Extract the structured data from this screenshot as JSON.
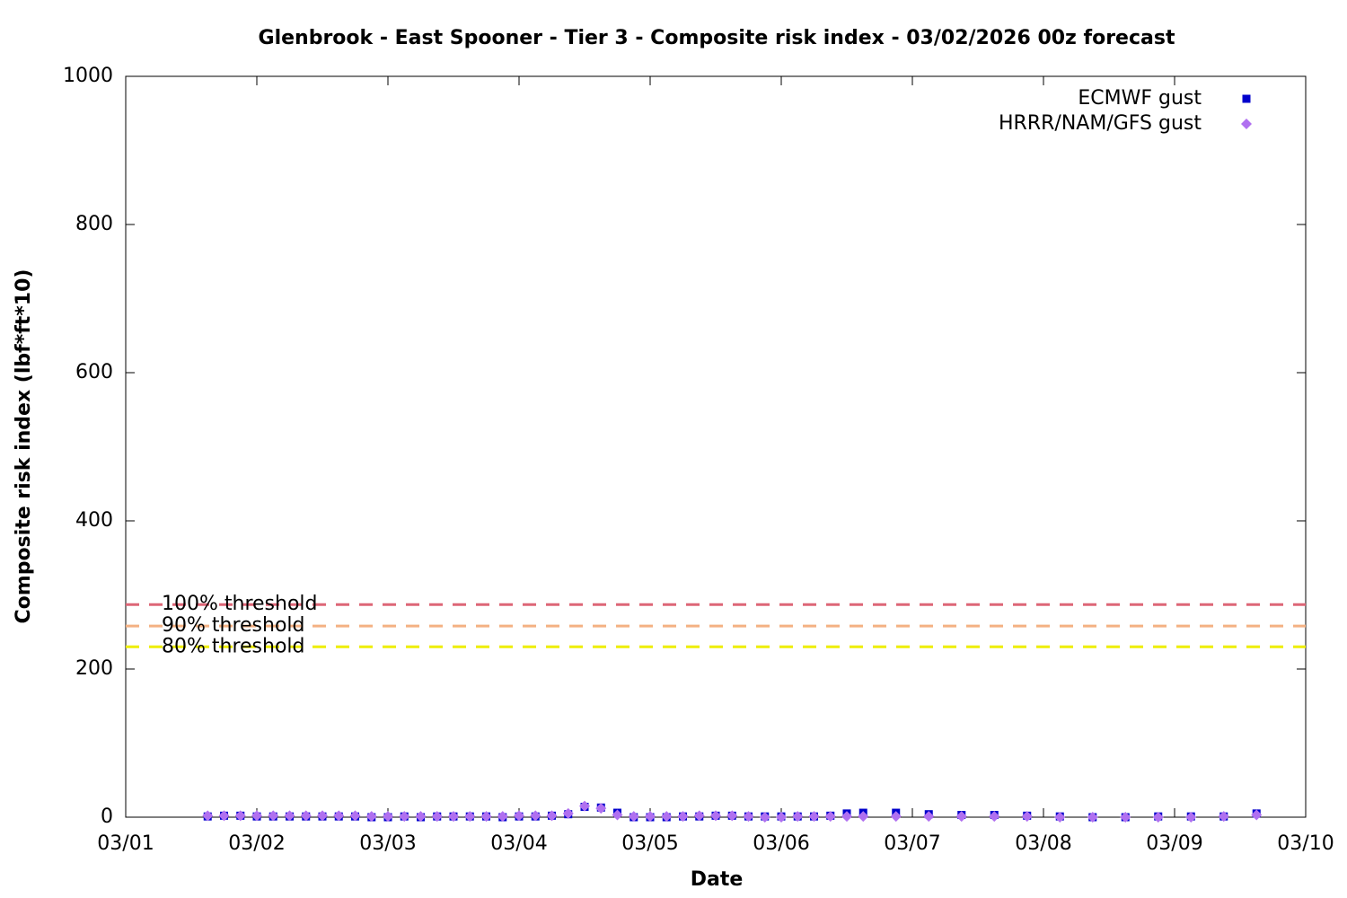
{
  "chart_data": {
    "type": "scatter",
    "title": "Glenbrook - East Spooner - Tier 3 - Composite risk index - 03/02/2026 00z forecast",
    "xlabel": "Date",
    "ylabel": "Composite risk index (lbf*ft*10)",
    "x": [
      1.625,
      1.75,
      1.875,
      2,
      2.125,
      2.25,
      2.375,
      2.5,
      2.625,
      2.75,
      2.875,
      3,
      3.125,
      3.25,
      3.375,
      3.5,
      3.625,
      3.75,
      3.875,
      4,
      4.125,
      4.25,
      4.375,
      4.5,
      4.625,
      4.75,
      4.875,
      5,
      5.125,
      5.25,
      5.375,
      5.5,
      5.625,
      5.75,
      5.875,
      6,
      6.125,
      6.25,
      6.375,
      6.5,
      6.625,
      6.875,
      7.125,
      7.375,
      7.625,
      7.875,
      8.125,
      8.375,
      8.625,
      8.875,
      9.125,
      9.375,
      9.625
    ],
    "series": [
      {
        "name": "ECMWF gust",
        "color": "#0000cc",
        "marker": "square",
        "values": [
          1,
          2,
          2,
          1,
          1,
          1,
          1,
          1,
          1,
          1,
          0,
          0,
          1,
          0,
          1,
          1,
          1,
          1,
          0,
          1,
          1,
          2,
          4,
          14,
          13,
          6,
          0,
          0,
          0,
          1,
          1,
          2,
          2,
          1,
          1,
          1,
          1,
          1,
          2,
          5,
          6,
          6,
          4,
          3,
          3,
          2,
          1,
          0,
          0,
          1,
          1,
          1,
          5
        ]
      },
      {
        "name": "HRRR/NAM/GFS gust",
        "color": "#b070f0",
        "marker": "diamond",
        "values": [
          2,
          2,
          2,
          2,
          2,
          2,
          2,
          2,
          2,
          2,
          1,
          1,
          1,
          1,
          1,
          1,
          1,
          1,
          1,
          2,
          2,
          2,
          5,
          15,
          12,
          3,
          1,
          1,
          1,
          1,
          2,
          2,
          2,
          1,
          0,
          0,
          1,
          1,
          1,
          1,
          1,
          1,
          1,
          1,
          1,
          1,
          0,
          0,
          0,
          0,
          0,
          1,
          3
        ]
      }
    ],
    "thresholds": [
      {
        "label": "100% threshold",
        "value": 287,
        "color": "#dd6677"
      },
      {
        "label": "90% threshold",
        "value": 258,
        "color": "#f4b183"
      },
      {
        "label": "80% threshold",
        "value": 230,
        "color": "#eeee00"
      }
    ],
    "xlim": [
      1,
      10
    ],
    "xticks": [
      {
        "value": 1,
        "label": "03/01"
      },
      {
        "value": 2,
        "label": "03/02"
      },
      {
        "value": 3,
        "label": "03/03"
      },
      {
        "value": 4,
        "label": "03/04"
      },
      {
        "value": 5,
        "label": "03/05"
      },
      {
        "value": 6,
        "label": "03/06"
      },
      {
        "value": 7,
        "label": "03/07"
      },
      {
        "value": 8,
        "label": "03/08"
      },
      {
        "value": 9,
        "label": "03/09"
      },
      {
        "value": 10,
        "label": "03/10"
      }
    ],
    "ylim": [
      0,
      1000
    ],
    "yticks": [
      0,
      200,
      400,
      600,
      800,
      1000
    ],
    "legend": "top-right"
  }
}
